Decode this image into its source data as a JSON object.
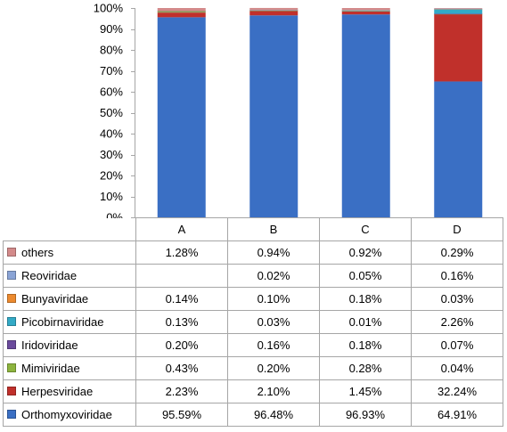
{
  "chart_data": {
    "type": "bar",
    "stacked": true,
    "percent": true,
    "categories": [
      "A",
      "B",
      "C",
      "D"
    ],
    "y_ticks": [
      "0%",
      "10%",
      "20%",
      "30%",
      "40%",
      "50%",
      "60%",
      "70%",
      "80%",
      "90%",
      "100%"
    ],
    "ylim": [
      0,
      100
    ],
    "legend_placement": "table-left",
    "grid": false,
    "series": [
      {
        "name": "Orthomyxoviridae",
        "color": "#3a6fc4",
        "values": [
          95.59,
          96.48,
          96.93,
          64.91
        ],
        "labels": [
          "95.59%",
          "96.48%",
          "96.93%",
          "64.91%"
        ]
      },
      {
        "name": "Herpesviridae",
        "color": "#c0302b",
        "values": [
          2.23,
          2.1,
          1.45,
          32.24
        ],
        "labels": [
          "2.23%",
          "2.10%",
          "1.45%",
          "32.24%"
        ]
      },
      {
        "name": "Mimiviridae",
        "color": "#8db43e",
        "values": [
          0.43,
          0.2,
          0.28,
          0.04
        ],
        "labels": [
          "0.43%",
          "0.20%",
          "0.28%",
          "0.04%"
        ]
      },
      {
        "name": "Iridoviridae",
        "color": "#6a4a9c",
        "values": [
          0.2,
          0.16,
          0.18,
          0.07
        ],
        "labels": [
          "0.20%",
          "0.16%",
          "0.18%",
          "0.07%"
        ]
      },
      {
        "name": "Picobirnaviridae",
        "color": "#33aac6",
        "values": [
          0.13,
          0.03,
          0.01,
          2.26
        ],
        "labels": [
          "0.13%",
          "0.03%",
          "0.01%",
          "2.26%"
        ]
      },
      {
        "name": "Bunyaviridae",
        "color": "#ec8a2f",
        "values": [
          0.14,
          0.1,
          0.18,
          0.03
        ],
        "labels": [
          "0.14%",
          "0.10%",
          "0.18%",
          "0.03%"
        ]
      },
      {
        "name": "Reoviridae",
        "color": "#8aa4d6",
        "values": [
          null,
          0.02,
          0.05,
          0.16
        ],
        "labels": [
          "",
          "0.02%",
          "0.05%",
          "0.16%"
        ]
      },
      {
        "name": "others",
        "color": "#d38a8a",
        "values": [
          1.28,
          0.94,
          0.92,
          0.29
        ],
        "labels": [
          "1.28%",
          "0.94%",
          "0.92%",
          "0.29%"
        ]
      }
    ]
  }
}
